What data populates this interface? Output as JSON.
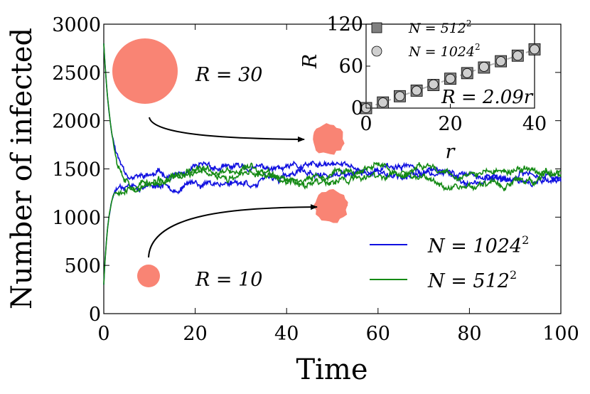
{
  "chart_data": [
    {
      "type": "line",
      "xlabel": "Time",
      "ylabel": "Number of infected",
      "xlim": [
        0,
        100
      ],
      "ylim": [
        0,
        3000
      ],
      "xticks": [
        "0",
        "20",
        "40",
        "60",
        "80",
        "100"
      ],
      "yticks": [
        "0",
        "500",
        "1000",
        "1500",
        "2000",
        "2500",
        "3000"
      ],
      "series": [
        {
          "name": "N = 1024²",
          "color": "#1010e0",
          "start": 2800,
          "plateau": 1440,
          "seed": 11,
          "amp": 55
        },
        {
          "name": "N = 1024²",
          "color": "#1010e0",
          "start": 300,
          "plateau": 1420,
          "seed": 23,
          "amp": 55
        },
        {
          "name": "N = 512²",
          "color": "#148a14",
          "start": 2800,
          "plateau": 1460,
          "seed": 37,
          "amp": 60
        },
        {
          "name": "N = 512²",
          "color": "#148a14",
          "start": 300,
          "plateau": 1410,
          "seed": 53,
          "amp": 60
        }
      ],
      "legend": {
        "placement": "lower-right",
        "entries": [
          {
            "label_main": "N = 1024",
            "sup": "2",
            "color": "#1010e0"
          },
          {
            "label_main": "N = 512",
            "sup": "2",
            "color": "#148a14"
          }
        ]
      },
      "annotations": {
        "big_label": "R = 30",
        "small_label": "R = 10",
        "blob_color": "#f98474"
      }
    },
    {
      "type": "scatter",
      "xlabel": "r",
      "ylabel": "R",
      "xlim": [
        0,
        40
      ],
      "ylim": [
        0,
        120
      ],
      "xticks": [
        "0",
        "20",
        "40"
      ],
      "yticks": [
        "0",
        "60",
        "120"
      ],
      "fit_label": "R = 2.09r",
      "fit_slope": 2.09,
      "series": [
        {
          "name": "N = 512²",
          "marker": "square",
          "x": [
            0,
            4,
            8,
            12,
            16,
            20,
            24,
            28,
            32,
            36,
            40
          ],
          "y": [
            0,
            8,
            17,
            25,
            33,
            42,
            50,
            58,
            67,
            75,
            84
          ]
        },
        {
          "name": "N = 1024²",
          "marker": "circle",
          "x": [
            0,
            4,
            8,
            12,
            16,
            20,
            24,
            28,
            32,
            36,
            40
          ],
          "y": [
            0,
            8,
            17,
            25,
            34,
            42,
            50,
            59,
            67,
            75,
            84
          ]
        }
      ],
      "legend": {
        "entries": [
          {
            "label_main": "N = 512",
            "sup": "2",
            "marker": "square"
          },
          {
            "label_main": "N = 1024",
            "sup": "2",
            "marker": "circle"
          }
        ]
      }
    }
  ]
}
